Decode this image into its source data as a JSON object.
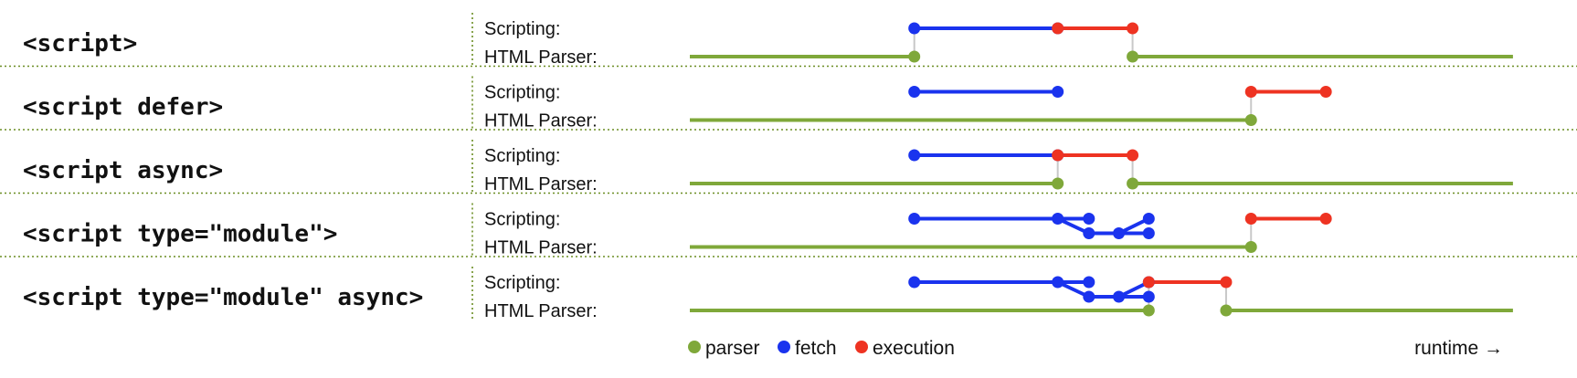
{
  "rows": [
    {
      "tag": "<script>",
      "scripting_label": "Scripting:",
      "parser_label": "HTML Parser:",
      "parser_segments": [
        [
          0,
          1.8
        ],
        [
          3.55,
          6.6
        ]
      ],
      "fetch_segments": [
        [
          1.8,
          2.95
        ]
      ],
      "execution_segments": [
        [
          2.95,
          3.55
        ]
      ],
      "connectors": [
        1.8,
        3.55
      ]
    },
    {
      "tag": "<script defer>",
      "scripting_label": "Scripting:",
      "parser_label": "HTML Parser:",
      "parser_segments": [
        [
          0,
          4.5
        ]
      ],
      "fetch_segments": [
        [
          1.8,
          2.95
        ]
      ],
      "execution_segments": [
        [
          4.5,
          5.1
        ]
      ],
      "connectors": [
        4.5
      ]
    },
    {
      "tag": "<script async>",
      "scripting_label": "Scripting:",
      "parser_label": "HTML Parser:",
      "parser_segments": [
        [
          0,
          2.95
        ],
        [
          3.55,
          6.6
        ]
      ],
      "fetch_segments": [
        [
          1.8,
          2.95
        ]
      ],
      "execution_segments": [
        [
          2.95,
          3.55
        ]
      ],
      "connectors": [
        2.95,
        3.55
      ]
    },
    {
      "tag": "<script type=\"module\">",
      "scripting_label": "Scripting:",
      "parser_label": "HTML Parser:",
      "parser_segments": [
        [
          0,
          4.5
        ]
      ],
      "fetch_segments": [
        [
          1.8,
          2.95
        ]
      ],
      "module_fetch": {
        "split": 2.95,
        "top_end": 3.2,
        "low_start": 3.2,
        "low_end": 3.68,
        "rejoin": 3.68
      },
      "execution_segments": [
        [
          4.5,
          5.1
        ]
      ],
      "connectors": [
        4.5
      ]
    },
    {
      "tag": "<script type=\"module\" async>",
      "scripting_label": "Scripting:",
      "parser_label": "HTML Parser:",
      "parser_segments": [
        [
          0,
          3.68
        ],
        [
          4.3,
          6.6
        ]
      ],
      "fetch_segments": [
        [
          1.8,
          2.95
        ]
      ],
      "module_fetch": {
        "split": 2.95,
        "top_end": 3.2,
        "low_start": 3.2,
        "low_end": 3.68,
        "rejoin": 3.68
      },
      "execution_segments": [
        [
          3.68,
          4.3
        ]
      ],
      "connectors": [
        3.68,
        4.3
      ]
    }
  ],
  "legend": [
    {
      "label": "parser",
      "color": "#7fa83a"
    },
    {
      "label": "fetch",
      "color": "#1a33ee"
    },
    {
      "label": "execution",
      "color": "#ee3322"
    }
  ],
  "runtime_label": "runtime →",
  "colors": {
    "parser": "#7fa83a",
    "fetch": "#1a33ee",
    "execution": "#ee3322",
    "connector": "#c8c8c8",
    "separator": "#6b8e23"
  }
}
